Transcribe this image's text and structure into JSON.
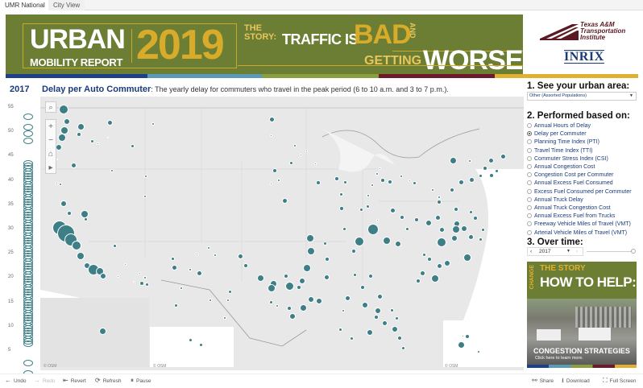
{
  "tabs": [
    {
      "label": "UMR National",
      "active": true
    },
    {
      "label": "City View",
      "active": false
    }
  ],
  "banner": {
    "urban": "URBAN",
    "mobility_report": "MOBILITY REPORT",
    "year": "2019",
    "the": "THE",
    "story": "STORY:",
    "traffic_is": "TRAFFIC IS",
    "bad": "BAD",
    "and": "AND",
    "getting": "GETTING",
    "worse": "WORSE."
  },
  "logos": {
    "tti_line1": "Texas A&M",
    "tti_line2": "Transportation",
    "tti_line3": "Institute",
    "inrix": "INRIX"
  },
  "colors": {
    "banner_green": "#6b7e33",
    "gold": "#d8ac2a",
    "maroon": "#5a1a24",
    "teal_dot": "#3e7f87",
    "navy": "#1a3a7a"
  },
  "header": {
    "year": "2017",
    "metric": "Delay per Auto Commuter",
    "description": ": The yearly delay for commuters who travel in the peak period (6 to 10 a.m. and 3 to 7 p.m.)."
  },
  "axis": {
    "ticks": [
      "55",
      "50",
      "45",
      "40",
      "35",
      "30",
      "25",
      "20",
      "15",
      "10",
      "5"
    ]
  },
  "map": {
    "attribution": "© OSM",
    "controls": {
      "search": "⌕",
      "zoom_in": "+",
      "zoom_out": "−",
      "home": "⌂",
      "play": "▸"
    }
  },
  "panel": {
    "section1_title": "1. See your urban area:",
    "urban_area_value": "Other (Assorted Populations)",
    "section2_title": "2. Performed based on:",
    "measures": [
      {
        "label": "Annual Hours of Delay",
        "selected": false
      },
      {
        "label": "Delay per Commuter",
        "selected": true
      },
      {
        "label": "Planning Time Index (PTI)",
        "selected": false
      },
      {
        "label": "Travel Time Index (TTI)",
        "selected": false
      },
      {
        "label": "Commuter Stress Index (CSI)",
        "selected": false
      },
      {
        "label": "Annual Congestion Cost",
        "selected": false
      },
      {
        "label": "Congestion Cost per Commuter",
        "selected": false
      },
      {
        "label": "Annual Excess Fuel Consumed",
        "selected": false
      },
      {
        "label": "Excess Fuel Consumed per Commuter",
        "selected": false
      },
      {
        "label": "Annual Truck Delay",
        "selected": false
      },
      {
        "label": "Annual Truck Congestion Cost",
        "selected": false
      },
      {
        "label": "Annual Excess Fuel from Trucks",
        "selected": false
      },
      {
        "label": "Freeway Vehicle Miles of Travel (VMT)",
        "selected": false
      },
      {
        "label": "Arterial Vehicle Miles of Travel (VMT)",
        "selected": false
      }
    ],
    "section3_title": "3. Over time:",
    "year_value": "2017"
  },
  "promo": {
    "change": "CHANGE",
    "the_story": "THE STORY",
    "how_to_help": "HOW TO HELP:",
    "strategies": "CONGESTION STRATEGIES",
    "cta": "Click here to learn more."
  },
  "toolbar": {
    "undo": "Undo",
    "redo": "Redo",
    "revert": "Revert",
    "refresh": "Refresh",
    "pause": "Pause",
    "share": "Share",
    "download": "Download",
    "full_screen": "Full Screen"
  }
}
